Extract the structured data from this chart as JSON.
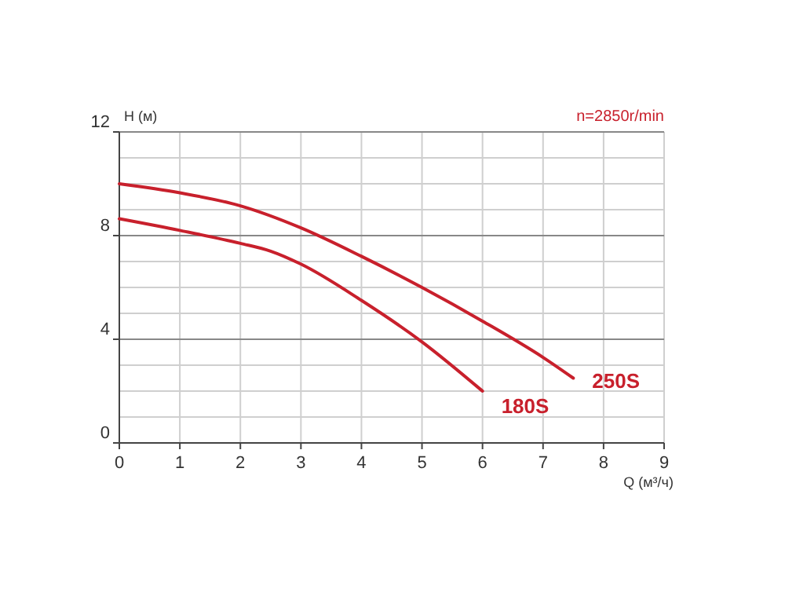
{
  "chart_data": {
    "type": "line",
    "xlabel": "Q (м³/ч)",
    "ylabel": "H (м)",
    "annotations": [
      "n=2850r/min"
    ],
    "xlim": [
      0,
      9
    ],
    "xticks": [
      0,
      1,
      2,
      3,
      4,
      5,
      6,
      7,
      8,
      9
    ],
    "ylim": [
      0,
      12
    ],
    "yticks": [
      0,
      {
        "value": 1,
        "label": null
      },
      {
        "value": 2,
        "label": null
      },
      {
        "value": 3,
        "label": null
      },
      4,
      {
        "value": 5,
        "label": null
      },
      {
        "value": 6,
        "label": null
      },
      {
        "value": 7,
        "label": null
      },
      8,
      {
        "value": 9,
        "label": null
      },
      {
        "value": 10,
        "label": null
      },
      {
        "value": 11,
        "label": null
      },
      12
    ],
    "grid": true,
    "marker": "none",
    "line_style": "solid",
    "series": [
      {
        "name": "250S",
        "color": "#c8202c",
        "x": [
          0,
          1,
          2,
          3,
          4,
          5,
          6,
          7,
          7.5
        ],
        "values": [
          10.0,
          9.65,
          9.15,
          8.3,
          7.2,
          6.0,
          4.7,
          3.3,
          2.5
        ]
      },
      {
        "name": "180S",
        "color": "#c8202c",
        "x": [
          0,
          1,
          2,
          2.5,
          3,
          4,
          5,
          6
        ],
        "values": [
          8.65,
          8.2,
          7.7,
          7.4,
          6.9,
          5.5,
          3.9,
          2.0
        ]
      }
    ]
  }
}
